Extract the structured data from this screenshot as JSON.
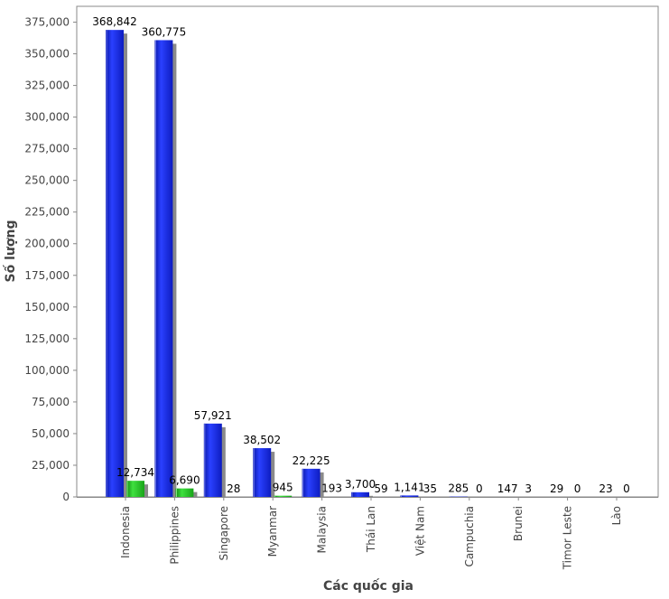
{
  "chart_data": {
    "type": "bar",
    "title": "",
    "xlabel": "Các quốc gia",
    "ylabel": "Số lượng",
    "ylim": [
      0,
      387500
    ],
    "ytick_step": 25000,
    "categories": [
      "Indonesia",
      "Philippines",
      "Singapore",
      "Myanmar",
      "Malaysia",
      "Thái Lan",
      "Việt Nam",
      "Campuchia",
      "Brunei",
      "Timor Leste",
      "Lào"
    ],
    "series": [
      {
        "name": "Series 1",
        "color": "#1428e0",
        "values": [
          368842,
          360775,
          57921,
          38502,
          22225,
          3700,
          1141,
          285,
          147,
          29,
          23
        ],
        "labels": [
          "368,842",
          "360,775",
          "57,921",
          "38,502",
          "22,225",
          "3,700",
          "1,141",
          "285",
          "147",
          "29",
          "23"
        ]
      },
      {
        "name": "Series 2",
        "color": "#22b822",
        "values": [
          12734,
          6690,
          28,
          945,
          193,
          59,
          35,
          0,
          3,
          0,
          0
        ],
        "labels": [
          "12,734",
          "6,690",
          "28",
          "945",
          "193",
          "59",
          "35",
          "0",
          "3",
          "0",
          "0"
        ]
      }
    ],
    "grid": false,
    "legend": "none"
  }
}
